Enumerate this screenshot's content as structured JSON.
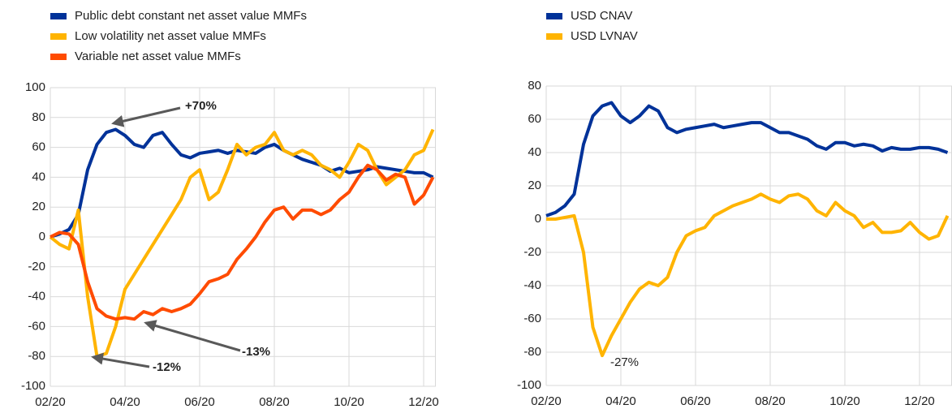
{
  "chart_data": [
    {
      "type": "line",
      "categories": [
        "02/20",
        null,
        null,
        null,
        null,
        null,
        null,
        null,
        "04/20",
        null,
        null,
        null,
        null,
        null,
        null,
        null,
        "06/20",
        null,
        null,
        null,
        null,
        null,
        null,
        null,
        "08/20",
        null,
        null,
        null,
        null,
        null,
        null,
        null,
        "10/20",
        null,
        null,
        null,
        null,
        null,
        null,
        null,
        "12/20",
        null
      ],
      "series": [
        {
          "name": "Public debt constant net asset value MMFs",
          "color": "#003299",
          "values": [
            0,
            2,
            5,
            15,
            45,
            62,
            70,
            72,
            68,
            62,
            60,
            68,
            70,
            62,
            55,
            53,
            56,
            57,
            58,
            56,
            58,
            57,
            56,
            60,
            62,
            58,
            55,
            52,
            50,
            48,
            44,
            46,
            43,
            44,
            45,
            47,
            46,
            45,
            44,
            43,
            43,
            40
          ]
        },
        {
          "name": "Low volatility net asset value MMFs",
          "color": "#ffb400",
          "values": [
            0,
            -5,
            -8,
            18,
            -40,
            -80,
            -78,
            -60,
            -35,
            -25,
            -15,
            -5,
            5,
            15,
            25,
            40,
            45,
            25,
            30,
            45,
            62,
            55,
            60,
            62,
            70,
            58,
            55,
            58,
            55,
            48,
            45,
            40,
            50,
            62,
            58,
            45,
            35,
            40,
            45,
            55,
            58,
            72
          ]
        },
        {
          "name": "Variable net asset value MMFs",
          "color": "#ff4b00",
          "values": [
            0,
            3,
            2,
            -5,
            -30,
            -48,
            -53,
            -55,
            -54,
            -55,
            -50,
            -52,
            -48,
            -50,
            -48,
            -45,
            -38,
            -30,
            -28,
            -25,
            -15,
            -8,
            0,
            10,
            18,
            20,
            12,
            18,
            18,
            15,
            18,
            25,
            30,
            40,
            48,
            45,
            38,
            42,
            40,
            22,
            28,
            40
          ]
        }
      ],
      "ylim": [
        -100,
        100
      ],
      "yticks": [
        -100,
        -80,
        -60,
        -40,
        -20,
        0,
        20,
        40,
        60,
        80,
        100
      ],
      "grid": true,
      "annotations": [
        "+70%",
        "-12%",
        "-13%"
      ]
    },
    {
      "type": "line",
      "categories": [
        "02/20",
        null,
        null,
        null,
        null,
        null,
        null,
        null,
        "04/20",
        null,
        null,
        null,
        null,
        null,
        null,
        null,
        "06/20",
        null,
        null,
        null,
        null,
        null,
        null,
        null,
        "08/20",
        null,
        null,
        null,
        null,
        null,
        null,
        null,
        "10/20",
        null,
        null,
        null,
        null,
        null,
        null,
        null,
        "12/20",
        null,
        null,
        null
      ],
      "series": [
        {
          "name": "USD CNAV",
          "color": "#003299",
          "values": [
            2,
            4,
            8,
            15,
            45,
            62,
            68,
            70,
            62,
            58,
            62,
            68,
            65,
            55,
            52,
            54,
            55,
            56,
            57,
            55,
            56,
            57,
            58,
            58,
            55,
            52,
            52,
            50,
            48,
            44,
            42,
            46,
            46,
            44,
            45,
            44,
            41,
            43,
            42,
            42,
            43,
            43,
            42,
            40
          ]
        },
        {
          "name": "USD LVNAV",
          "color": "#ffb400",
          "values": [
            0,
            0,
            1,
            2,
            -20,
            -65,
            -82,
            -70,
            -60,
            -50,
            -42,
            -38,
            -40,
            -35,
            -20,
            -10,
            -7,
            -5,
            2,
            5,
            8,
            10,
            12,
            15,
            12,
            10,
            14,
            15,
            12,
            5,
            2,
            10,
            5,
            2,
            -5,
            -2,
            -8,
            -8,
            -7,
            -2,
            -8,
            -12,
            -10,
            2
          ]
        }
      ],
      "ylim": [
        -100,
        80
      ],
      "yticks": [
        -100,
        -80,
        -60,
        -40,
        -20,
        0,
        20,
        40,
        60,
        80
      ],
      "grid": true,
      "annotations": [
        "-27%"
      ]
    }
  ]
}
